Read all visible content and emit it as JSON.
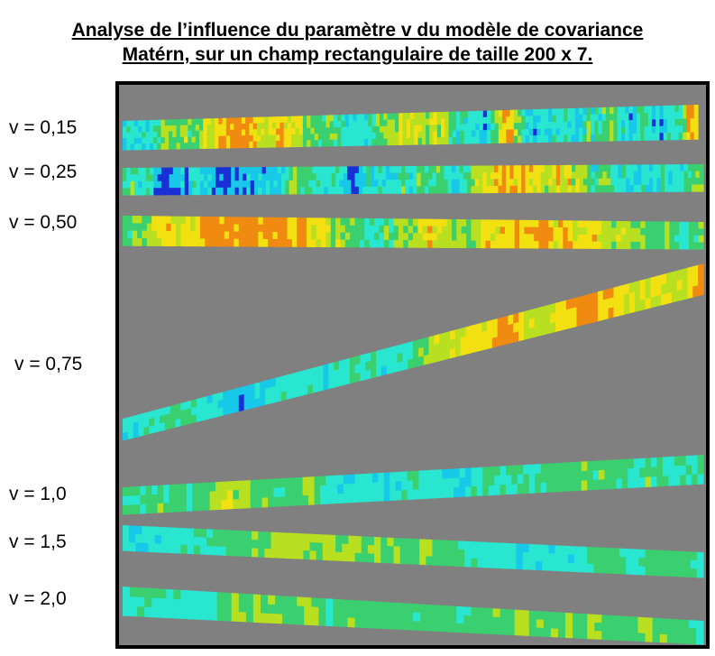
{
  "title_line1": "Analyse de l’influence du paramètre v du modèle de covariance",
  "title_line2": "Matérn, sur un champ rectangulaire de taille 200 x 7.",
  "rows": [
    {
      "label": "v = 0,15"
    },
    {
      "label": "v = 0,25"
    },
    {
      "label": "v = 0,50"
    },
    {
      "label": "v = 0,75"
    },
    {
      "label": "v = 1,0"
    },
    {
      "label": "v = 1,5"
    },
    {
      "label": "v = 2,0"
    }
  ],
  "colors": {
    "background": "#808080",
    "frame": "#000000",
    "colormap": [
      "#1a2fd6",
      "#18c8e8",
      "#28e6d0",
      "#3ad070",
      "#b8e020",
      "#f2e010",
      "#f08a10",
      "#d82a10"
    ]
  }
}
